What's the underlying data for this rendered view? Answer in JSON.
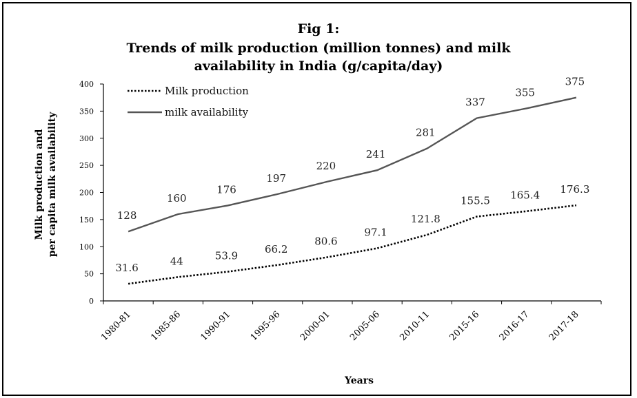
{
  "chart_data": {
    "type": "line",
    "title_lines": [
      "Fig 1:",
      "Trends of milk production (million tonnes) and milk",
      "availability in India (g/capita/day)"
    ],
    "xlabel": "Years",
    "ylabel_lines": [
      "Milk production and",
      "per capita milk availability"
    ],
    "categories": [
      "1980-81",
      "1985-86",
      "1990-91",
      "1995-96",
      "2000-01",
      "2005-06",
      "2010-11",
      "2015-16",
      "2016-17",
      "2017-18"
    ],
    "ylim": [
      0,
      400
    ],
    "yticks": [
      0,
      50,
      100,
      150,
      200,
      250,
      300,
      350,
      400
    ],
    "grid": false,
    "legend_position": "top-left",
    "series": [
      {
        "name": "Milk production",
        "style": "dotted",
        "color": "#000000",
        "values": [
          31.6,
          44,
          53.9,
          66.2,
          80.6,
          97.1,
          121.8,
          155.5,
          165.4,
          176.3
        ],
        "labels": [
          "31.6",
          "44",
          "53.9",
          "66.2",
          "80.6",
          "97.1",
          "121.8",
          "155.5",
          "165.4",
          "176.3"
        ]
      },
      {
        "name": "milk availability",
        "style": "solid",
        "color": "#555555",
        "values": [
          128,
          160,
          176,
          197,
          220,
          241,
          281,
          337,
          355,
          375
        ],
        "labels": [
          "128",
          "160",
          "176",
          "197",
          "220",
          "241",
          "281",
          "337",
          "355",
          "375"
        ]
      }
    ]
  }
}
